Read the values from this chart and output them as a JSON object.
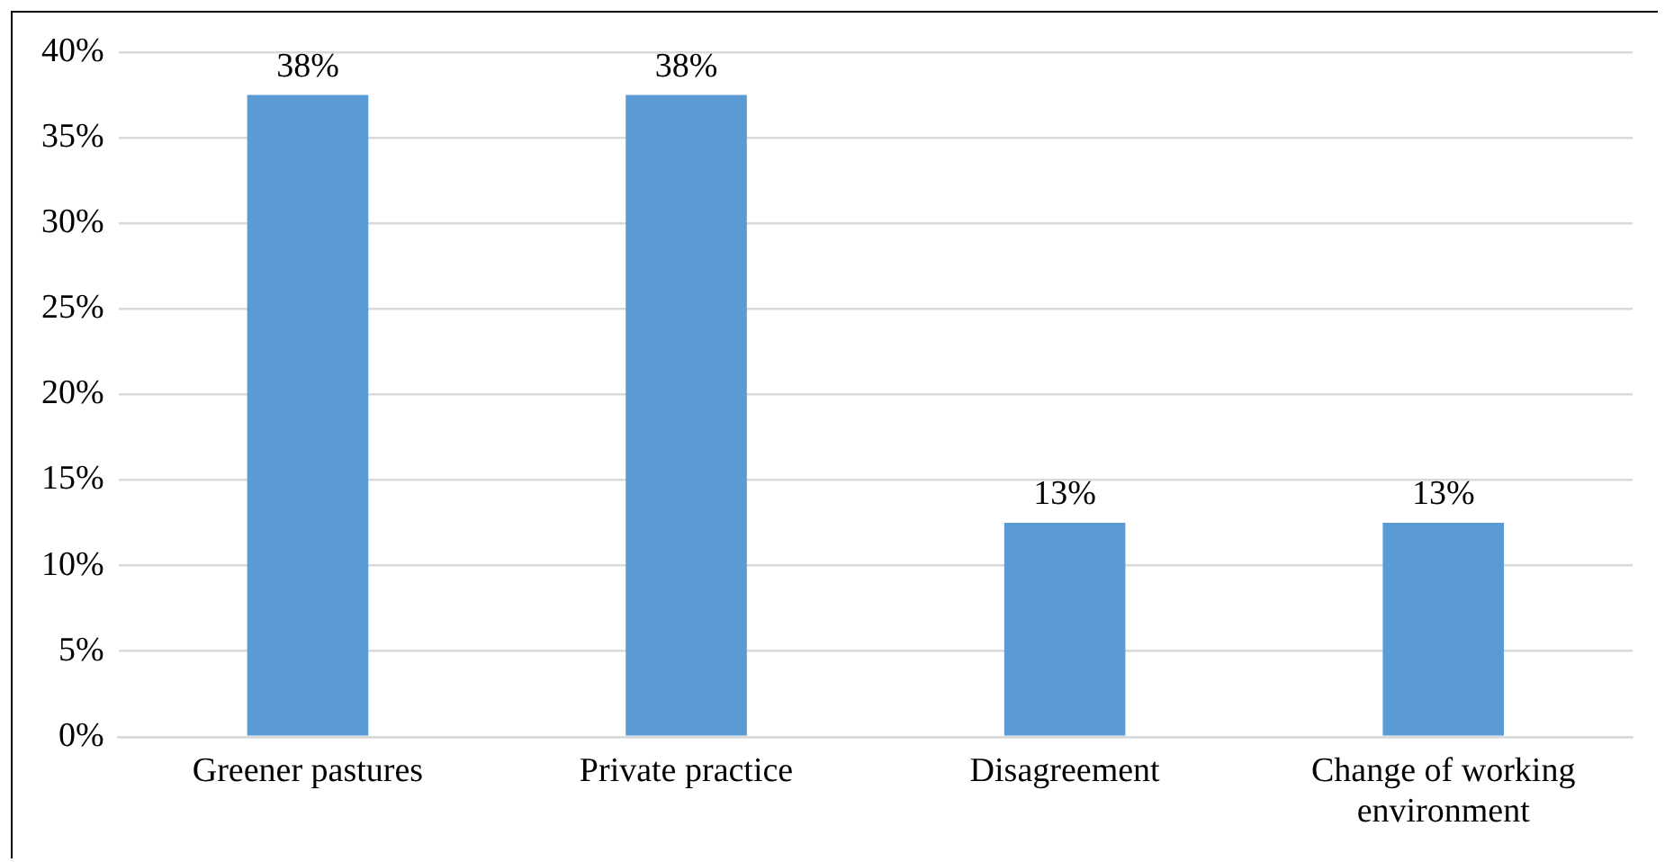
{
  "chart_data": {
    "type": "bar",
    "categories": [
      "Greener pastures",
      "Private practice",
      "Disagreement",
      "Change of working environment"
    ],
    "values": [
      37.5,
      37.5,
      12.5,
      12.5
    ],
    "value_labels": [
      "38%",
      "38%",
      "13%",
      "13%"
    ],
    "color": "#5b9bd5",
    "ylim": [
      0,
      40
    ],
    "yticks": [
      {
        "value": 0,
        "label": "0%"
      },
      {
        "value": 5,
        "label": "5%"
      },
      {
        "value": 10,
        "label": "10%"
      },
      {
        "value": 15,
        "label": "15%"
      },
      {
        "value": 20,
        "label": "20%"
      },
      {
        "value": 25,
        "label": "25%"
      },
      {
        "value": 30,
        "label": "30%"
      },
      {
        "value": 35,
        "label": "35%"
      },
      {
        "value": 40,
        "label": "40%"
      }
    ],
    "grid": "y",
    "legend": false
  }
}
